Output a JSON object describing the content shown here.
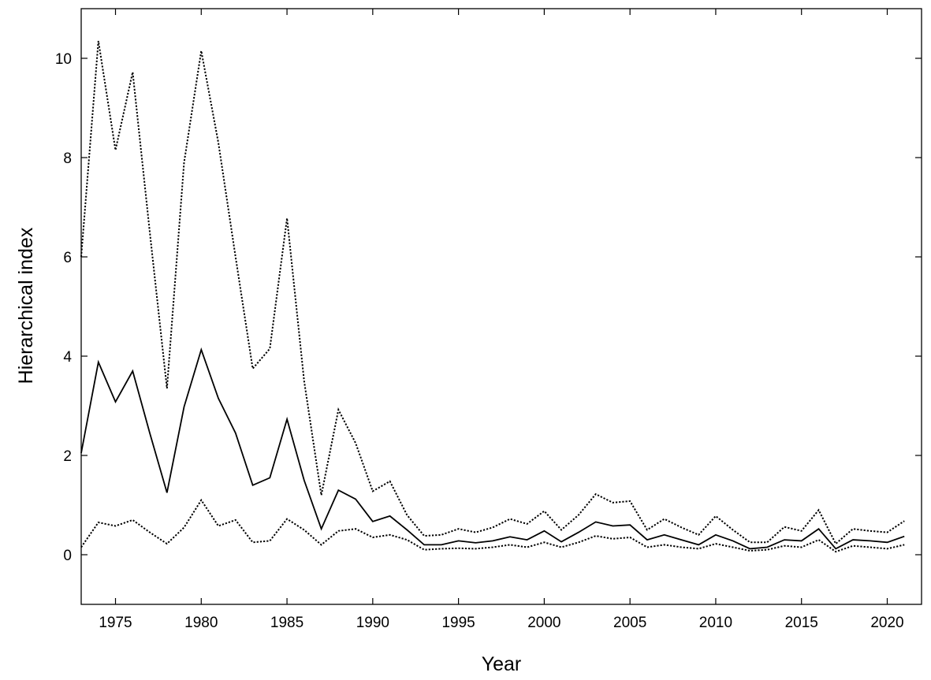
{
  "chart_data": {
    "type": "line",
    "title": "",
    "xlabel": "Year",
    "ylabel": "Hierarchical index",
    "xlim": [
      1973,
      2022
    ],
    "ylim": [
      -1,
      11
    ],
    "xticks": [
      1975,
      1980,
      1985,
      1990,
      1995,
      2000,
      2005,
      2010,
      2015,
      2020
    ],
    "yticks": [
      0,
      2,
      4,
      6,
      8,
      10
    ],
    "grid": false,
    "legend": "none",
    "x": [
      1973,
      1974,
      1975,
      1976,
      1977,
      1978,
      1979,
      1980,
      1981,
      1982,
      1983,
      1984,
      1985,
      1986,
      1987,
      1988,
      1989,
      1990,
      1991,
      1992,
      1993,
      1994,
      1995,
      1996,
      1997,
      1998,
      1999,
      2000,
      2001,
      2002,
      2003,
      2004,
      2005,
      2006,
      2007,
      2008,
      2009,
      2010,
      2011,
      2012,
      2013,
      2014,
      2015,
      2016,
      2017,
      2018,
      2019,
      2020,
      2021
    ],
    "series": [
      {
        "style": "dotted",
        "values": [
          6.0,
          10.35,
          8.15,
          9.72,
          6.5,
          3.35,
          7.9,
          10.15,
          8.3,
          6.0,
          3.75,
          4.15,
          6.78,
          3.5,
          1.2,
          2.92,
          2.25,
          1.28,
          1.48,
          0.8,
          0.38,
          0.4,
          0.52,
          0.45,
          0.55,
          0.72,
          0.62,
          0.88,
          0.5,
          0.8,
          1.22,
          1.05,
          1.08,
          0.5,
          0.72,
          0.55,
          0.4,
          0.78,
          0.5,
          0.25,
          0.25,
          0.56,
          0.48,
          0.9,
          0.22,
          0.52,
          0.48,
          0.45,
          0.68
        ]
      },
      {
        "style": "solid",
        "values": [
          2.05,
          3.88,
          3.08,
          3.7,
          2.45,
          1.25,
          2.98,
          4.13,
          3.15,
          2.45,
          1.4,
          1.55,
          2.73,
          1.5,
          0.52,
          1.3,
          1.12,
          0.67,
          0.78,
          0.5,
          0.2,
          0.2,
          0.28,
          0.24,
          0.28,
          0.36,
          0.3,
          0.48,
          0.26,
          0.45,
          0.66,
          0.58,
          0.6,
          0.3,
          0.4,
          0.3,
          0.2,
          0.4,
          0.28,
          0.12,
          0.15,
          0.3,
          0.28,
          0.52,
          0.12,
          0.3,
          0.28,
          0.25,
          0.37
        ]
      },
      {
        "style": "dotted",
        "values": [
          0.15,
          0.65,
          0.58,
          0.7,
          0.45,
          0.22,
          0.55,
          1.1,
          0.58,
          0.7,
          0.25,
          0.28,
          0.72,
          0.5,
          0.2,
          0.48,
          0.52,
          0.35,
          0.4,
          0.3,
          0.1,
          0.12,
          0.13,
          0.12,
          0.15,
          0.2,
          0.15,
          0.25,
          0.15,
          0.25,
          0.38,
          0.32,
          0.35,
          0.15,
          0.2,
          0.15,
          0.12,
          0.22,
          0.15,
          0.08,
          0.1,
          0.18,
          0.15,
          0.3,
          0.06,
          0.18,
          0.15,
          0.12,
          0.2
        ]
      }
    ]
  }
}
